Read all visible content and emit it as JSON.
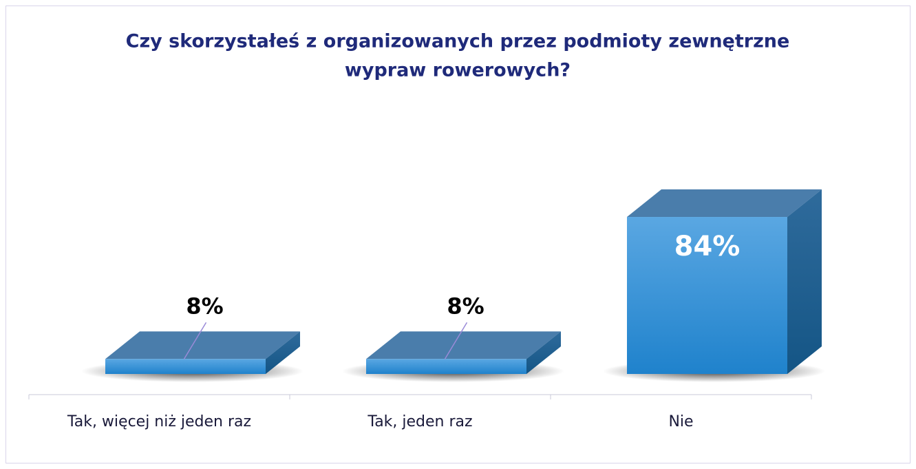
{
  "chart_data": {
    "type": "bar3d",
    "title": [
      "Czy skorzystałeś z organizowanych przez podmioty zewnętrzne",
      "wypraw rowerowych?"
    ],
    "categories": [
      "Tak, więcej niż jeden raz",
      "Tak, jeden raz",
      "Nie"
    ],
    "values": [
      8,
      8,
      84
    ],
    "value_labels": [
      "8%",
      "8%",
      "84%"
    ],
    "color": "#2d8fd8"
  }
}
